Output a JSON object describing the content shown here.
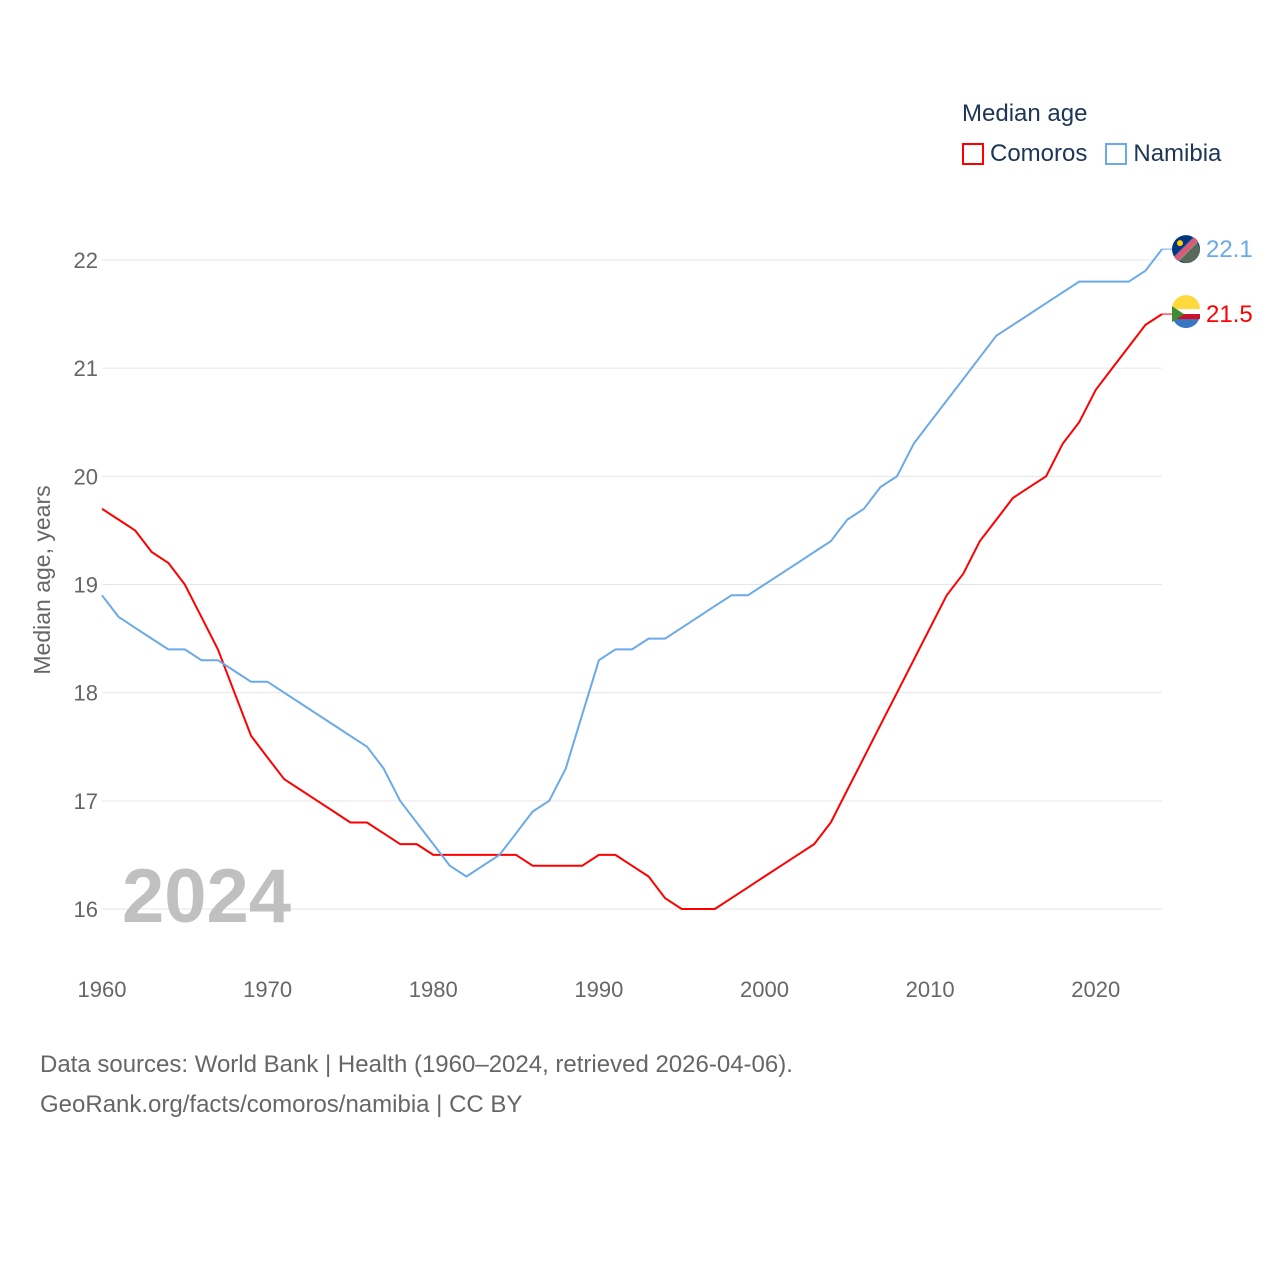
{
  "chart_data": {
    "type": "line",
    "title": "Median age",
    "xlabel": "",
    "ylabel": "Median age, years",
    "xlim": [
      1960,
      2024
    ],
    "ylim": [
      15.6,
      22.3
    ],
    "yticks": [
      16,
      17,
      18,
      19,
      20,
      21,
      22
    ],
    "xticks": [
      1960,
      1970,
      1980,
      1990,
      2000,
      2010,
      2020
    ],
    "grid": true,
    "legend_position": "top-right",
    "year_label": "2024",
    "x": [
      1960,
      1961,
      1962,
      1963,
      1964,
      1965,
      1966,
      1967,
      1968,
      1969,
      1970,
      1971,
      1972,
      1973,
      1974,
      1975,
      1976,
      1977,
      1978,
      1979,
      1980,
      1981,
      1982,
      1983,
      1984,
      1985,
      1986,
      1987,
      1988,
      1989,
      1990,
      1991,
      1992,
      1993,
      1994,
      1995,
      1996,
      1997,
      1998,
      1999,
      2000,
      2001,
      2002,
      2003,
      2004,
      2005,
      2006,
      2007,
      2008,
      2009,
      2010,
      2011,
      2012,
      2013,
      2014,
      2015,
      2016,
      2017,
      2018,
      2019,
      2020,
      2021,
      2022,
      2023,
      2024
    ],
    "series": [
      {
        "name": "Comoros",
        "color": "#ff0000",
        "end_label": "21.5",
        "values": [
          19.7,
          19.6,
          19.5,
          19.3,
          19.2,
          19.0,
          18.7,
          18.4,
          18.0,
          17.6,
          17.4,
          17.2,
          17.1,
          17.0,
          16.9,
          16.8,
          16.8,
          16.7,
          16.6,
          16.6,
          16.5,
          16.5,
          16.5,
          16.5,
          16.5,
          16.5,
          16.4,
          16.4,
          16.4,
          16.4,
          16.5,
          16.5,
          16.4,
          16.3,
          16.1,
          16.0,
          16.0,
          16.0,
          16.1,
          16.2,
          16.3,
          16.4,
          16.5,
          16.6,
          16.8,
          17.1,
          17.4,
          17.7,
          18.0,
          18.3,
          18.6,
          18.9,
          19.1,
          19.4,
          19.6,
          19.8,
          19.9,
          20.0,
          20.3,
          20.5,
          20.8,
          21.0,
          21.2,
          21.4,
          21.5
        ]
      },
      {
        "name": "Namibia",
        "color": "#6aaae8",
        "end_label": "22.1",
        "values": [
          18.9,
          18.7,
          18.6,
          18.5,
          18.4,
          18.4,
          18.3,
          18.3,
          18.2,
          18.1,
          18.1,
          18.0,
          17.9,
          17.8,
          17.7,
          17.6,
          17.5,
          17.3,
          17.0,
          16.8,
          16.6,
          16.4,
          16.3,
          16.4,
          16.5,
          16.7,
          16.9,
          17.0,
          17.3,
          17.8,
          18.3,
          18.4,
          18.4,
          18.5,
          18.5,
          18.6,
          18.7,
          18.8,
          18.9,
          18.9,
          19.0,
          19.1,
          19.2,
          19.3,
          19.4,
          19.6,
          19.7,
          19.9,
          20.0,
          20.3,
          20.5,
          20.7,
          20.9,
          21.1,
          21.3,
          21.4,
          21.5,
          21.6,
          21.7,
          21.8,
          21.8,
          21.8,
          21.8,
          21.9,
          22.1
        ]
      }
    ]
  },
  "legend": {
    "title": "Median age",
    "items": [
      "Comoros",
      "Namibia"
    ]
  },
  "source": {
    "line1": "Data sources: World Bank | Health (1960–2024, retrieved 2026-04-06).",
    "line2": "GeoRank.org/facts/comoros/namibia | CC BY"
  }
}
